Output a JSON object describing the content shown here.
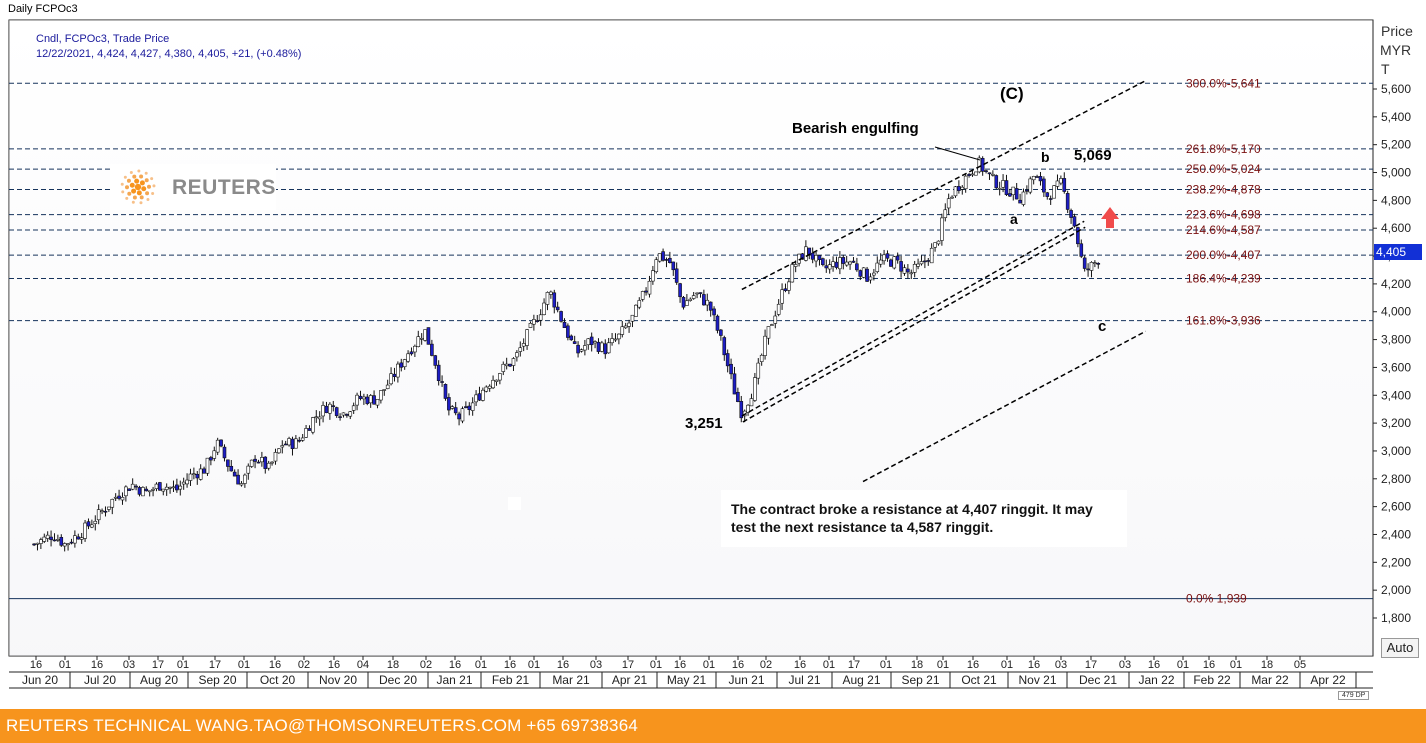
{
  "header": {
    "title": "Daily FCPOc3"
  },
  "legend": {
    "line1": "Cndl, FCPOc3, Trade Price",
    "line2": "12/22/2021, 4,424, 4,427, 4,380, 4,405, +21, (+0.48%)"
  },
  "logo": {
    "text": "REUTERS",
    "icon": "reuters-dot-logo"
  },
  "axis": {
    "price_title_1": "Price",
    "price_title_2": "MYR",
    "price_title_3": "T",
    "price_ticks": [
      "5,600",
      "5,400",
      "5,200",
      "5,000",
      "4,800",
      "4,600",
      "4,400",
      "4,200",
      "4,000",
      "3,800",
      "3,600",
      "3,400",
      "3,200",
      "3,000",
      "2,800",
      "2,600",
      "2,400",
      "2,200",
      "2,000",
      "1,800"
    ],
    "current_price_label": "4,405"
  },
  "colors": {
    "footer_bg": "#f7941d",
    "up_candle": "#ffffff",
    "down_candle": "#1d1dc4",
    "fib_label": "#7a1010",
    "current_price_bg": "#1230d6",
    "arrow": "#f04b4b"
  },
  "annotations": {
    "wave_c_upper": "(C)",
    "bearish_engulfing": "Bearish engulfing",
    "high_label": "5,069",
    "wave_b": "b",
    "wave_a": "a",
    "wave_c_lower": "c",
    "low_label": "3,251",
    "comment": "The contract broke a resistance at 4,407 ringgit. It may test the next resistance ta 4,587 ringgit."
  },
  "controls": {
    "auto_label": "Auto",
    "bar_count": "479 DP"
  },
  "footer": {
    "text": "REUTERS TECHNICAL  WANG.TAO@THOMSONREUTERS.COM  +65 69738364"
  },
  "chart_data": {
    "type": "candlestick",
    "title": "Daily FCPOc3",
    "ylabel": "Price MYR T",
    "ylim": [
      1600,
      5750
    ],
    "x_day_ticks": [
      "16",
      "01",
      "16",
      "03",
      "17",
      "01",
      "17",
      "01",
      "16",
      "02",
      "16",
      "04",
      "18",
      "02",
      "16",
      "01",
      "16",
      "01",
      "16",
      "03",
      "17",
      "01",
      "16",
      "01",
      "16",
      "02",
      "16",
      "01",
      "17",
      "01",
      "18",
      "01",
      "16",
      "01",
      "16",
      "03",
      "17",
      "03",
      "16",
      "01",
      "16",
      "01",
      "18",
      "05"
    ],
    "x_month_labels": [
      "Jun 20",
      "Jul 20",
      "Aug 20",
      "Sep 20",
      "Oct 20",
      "Nov 20",
      "Dec 20",
      "Jan 21",
      "Feb 21",
      "Mar 21",
      "Apr 21",
      "May 21",
      "Jun 21",
      "Jul 21",
      "Aug 21",
      "Sep 21",
      "Oct 21",
      "Nov 21",
      "Dec 21",
      "Jan 22",
      "Feb 22",
      "Mar 22",
      "Apr 22"
    ],
    "fibonacci_levels": [
      {
        "label": "300.0%",
        "value": 5641
      },
      {
        "label": "261.8%",
        "value": 5170
      },
      {
        "label": "250.0%",
        "value": 5024
      },
      {
        "label": "238.2%",
        "value": 4878
      },
      {
        "label": "223.6%",
        "value": 4698
      },
      {
        "label": "214.6%",
        "value": 4587
      },
      {
        "label": "200.0%",
        "value": 4407
      },
      {
        "label": "186.4%",
        "value": 4239
      },
      {
        "label": "161.8%",
        "value": 3936
      },
      {
        "label": "0.0%",
        "value": 1939
      }
    ],
    "price_path": [
      [
        "2020-06-15",
        2330
      ],
      [
        "2020-06-25",
        2400
      ],
      [
        "2020-07-01",
        2330
      ],
      [
        "2020-07-10",
        2420
      ],
      [
        "2020-07-20",
        2560
      ],
      [
        "2020-07-28",
        2680
      ],
      [
        "2020-08-05",
        2760
      ],
      [
        "2020-08-12",
        2700
      ],
      [
        "2020-08-20",
        2760
      ],
      [
        "2020-08-28",
        2720
      ],
      [
        "2020-09-05",
        2830
      ],
      [
        "2020-09-12",
        2870
      ],
      [
        "2020-09-18",
        3060
      ],
      [
        "2020-09-25",
        2870
      ],
      [
        "2020-10-01",
        2760
      ],
      [
        "2020-10-08",
        2960
      ],
      [
        "2020-10-15",
        2870
      ],
      [
        "2020-10-22",
        3050
      ],
      [
        "2020-10-30",
        3060
      ],
      [
        "2020-11-07",
        3230
      ],
      [
        "2020-11-15",
        3330
      ],
      [
        "2020-11-23",
        3270
      ],
      [
        "2020-12-01",
        3380
      ],
      [
        "2020-12-10",
        3370
      ],
      [
        "2020-12-18",
        3520
      ],
      [
        "2020-12-26",
        3700
      ],
      [
        "2021-01-04",
        3870
      ],
      [
        "2021-01-10",
        3620
      ],
      [
        "2021-01-16",
        3300
      ],
      [
        "2021-01-22",
        3240
      ],
      [
        "2021-01-28",
        3320
      ],
      [
        "2021-02-05",
        3470
      ],
      [
        "2021-02-12",
        3570
      ],
      [
        "2021-02-20",
        3660
      ],
      [
        "2021-02-26",
        3820
      ],
      [
        "2021-03-05",
        4000
      ],
      [
        "2021-03-10",
        4150
      ],
      [
        "2021-03-16",
        3950
      ],
      [
        "2021-03-24",
        3700
      ],
      [
        "2021-03-31",
        3790
      ],
      [
        "2021-04-08",
        3730
      ],
      [
        "2021-04-15",
        3820
      ],
      [
        "2021-04-22",
        3950
      ],
      [
        "2021-04-29",
        4150
      ],
      [
        "2021-05-05",
        4420
      ],
      [
        "2021-05-12",
        4350
      ],
      [
        "2021-05-18",
        4050
      ],
      [
        "2021-05-25",
        4130
      ],
      [
        "2021-06-01",
        4050
      ],
      [
        "2021-06-07",
        3800
      ],
      [
        "2021-06-14",
        3440
      ],
      [
        "2021-06-18",
        3270
      ],
      [
        "2021-06-24",
        3450
      ],
      [
        "2021-07-01",
        3830
      ],
      [
        "2021-07-08",
        4100
      ],
      [
        "2021-07-15",
        4330
      ],
      [
        "2021-07-22",
        4450
      ],
      [
        "2021-07-30",
        4300
      ],
      [
        "2021-08-06",
        4350
      ],
      [
        "2021-08-14",
        4360
      ],
      [
        "2021-08-22",
        4250
      ],
      [
        "2021-08-30",
        4370
      ],
      [
        "2021-09-06",
        4360
      ],
      [
        "2021-09-13",
        4270
      ],
      [
        "2021-09-20",
        4340
      ],
      [
        "2021-09-27",
        4480
      ],
      [
        "2021-10-04",
        4830
      ],
      [
        "2021-10-12",
        4960
      ],
      [
        "2021-10-19",
        5069
      ],
      [
        "2021-10-26",
        4950
      ],
      [
        "2021-11-03",
        4880
      ],
      [
        "2021-11-10",
        4820
      ],
      [
        "2021-11-17",
        4980
      ],
      [
        "2021-11-24",
        4830
      ],
      [
        "2021-12-01",
        4920
      ],
      [
        "2021-12-08",
        4620
      ],
      [
        "2021-12-13",
        4280
      ],
      [
        "2021-12-17",
        4330
      ],
      [
        "2021-12-22",
        4405
      ]
    ],
    "trendlines": [
      {
        "name": "upper-channel",
        "from": [
          "2021-06-18",
          4160
        ],
        "to": [
          "2022-01-14",
          5660
        ],
        "style": "dashed"
      },
      {
        "name": "lower-channel",
        "from": [
          "2021-06-18",
          3251
        ],
        "to": [
          "2021-12-13",
          4650
        ],
        "style": "dashed-double"
      },
      {
        "name": "lower-target-channel",
        "from": [
          "2021-08-20",
          2780
        ],
        "to": [
          "2022-01-14",
          3860
        ],
        "style": "dashed"
      }
    ]
  }
}
